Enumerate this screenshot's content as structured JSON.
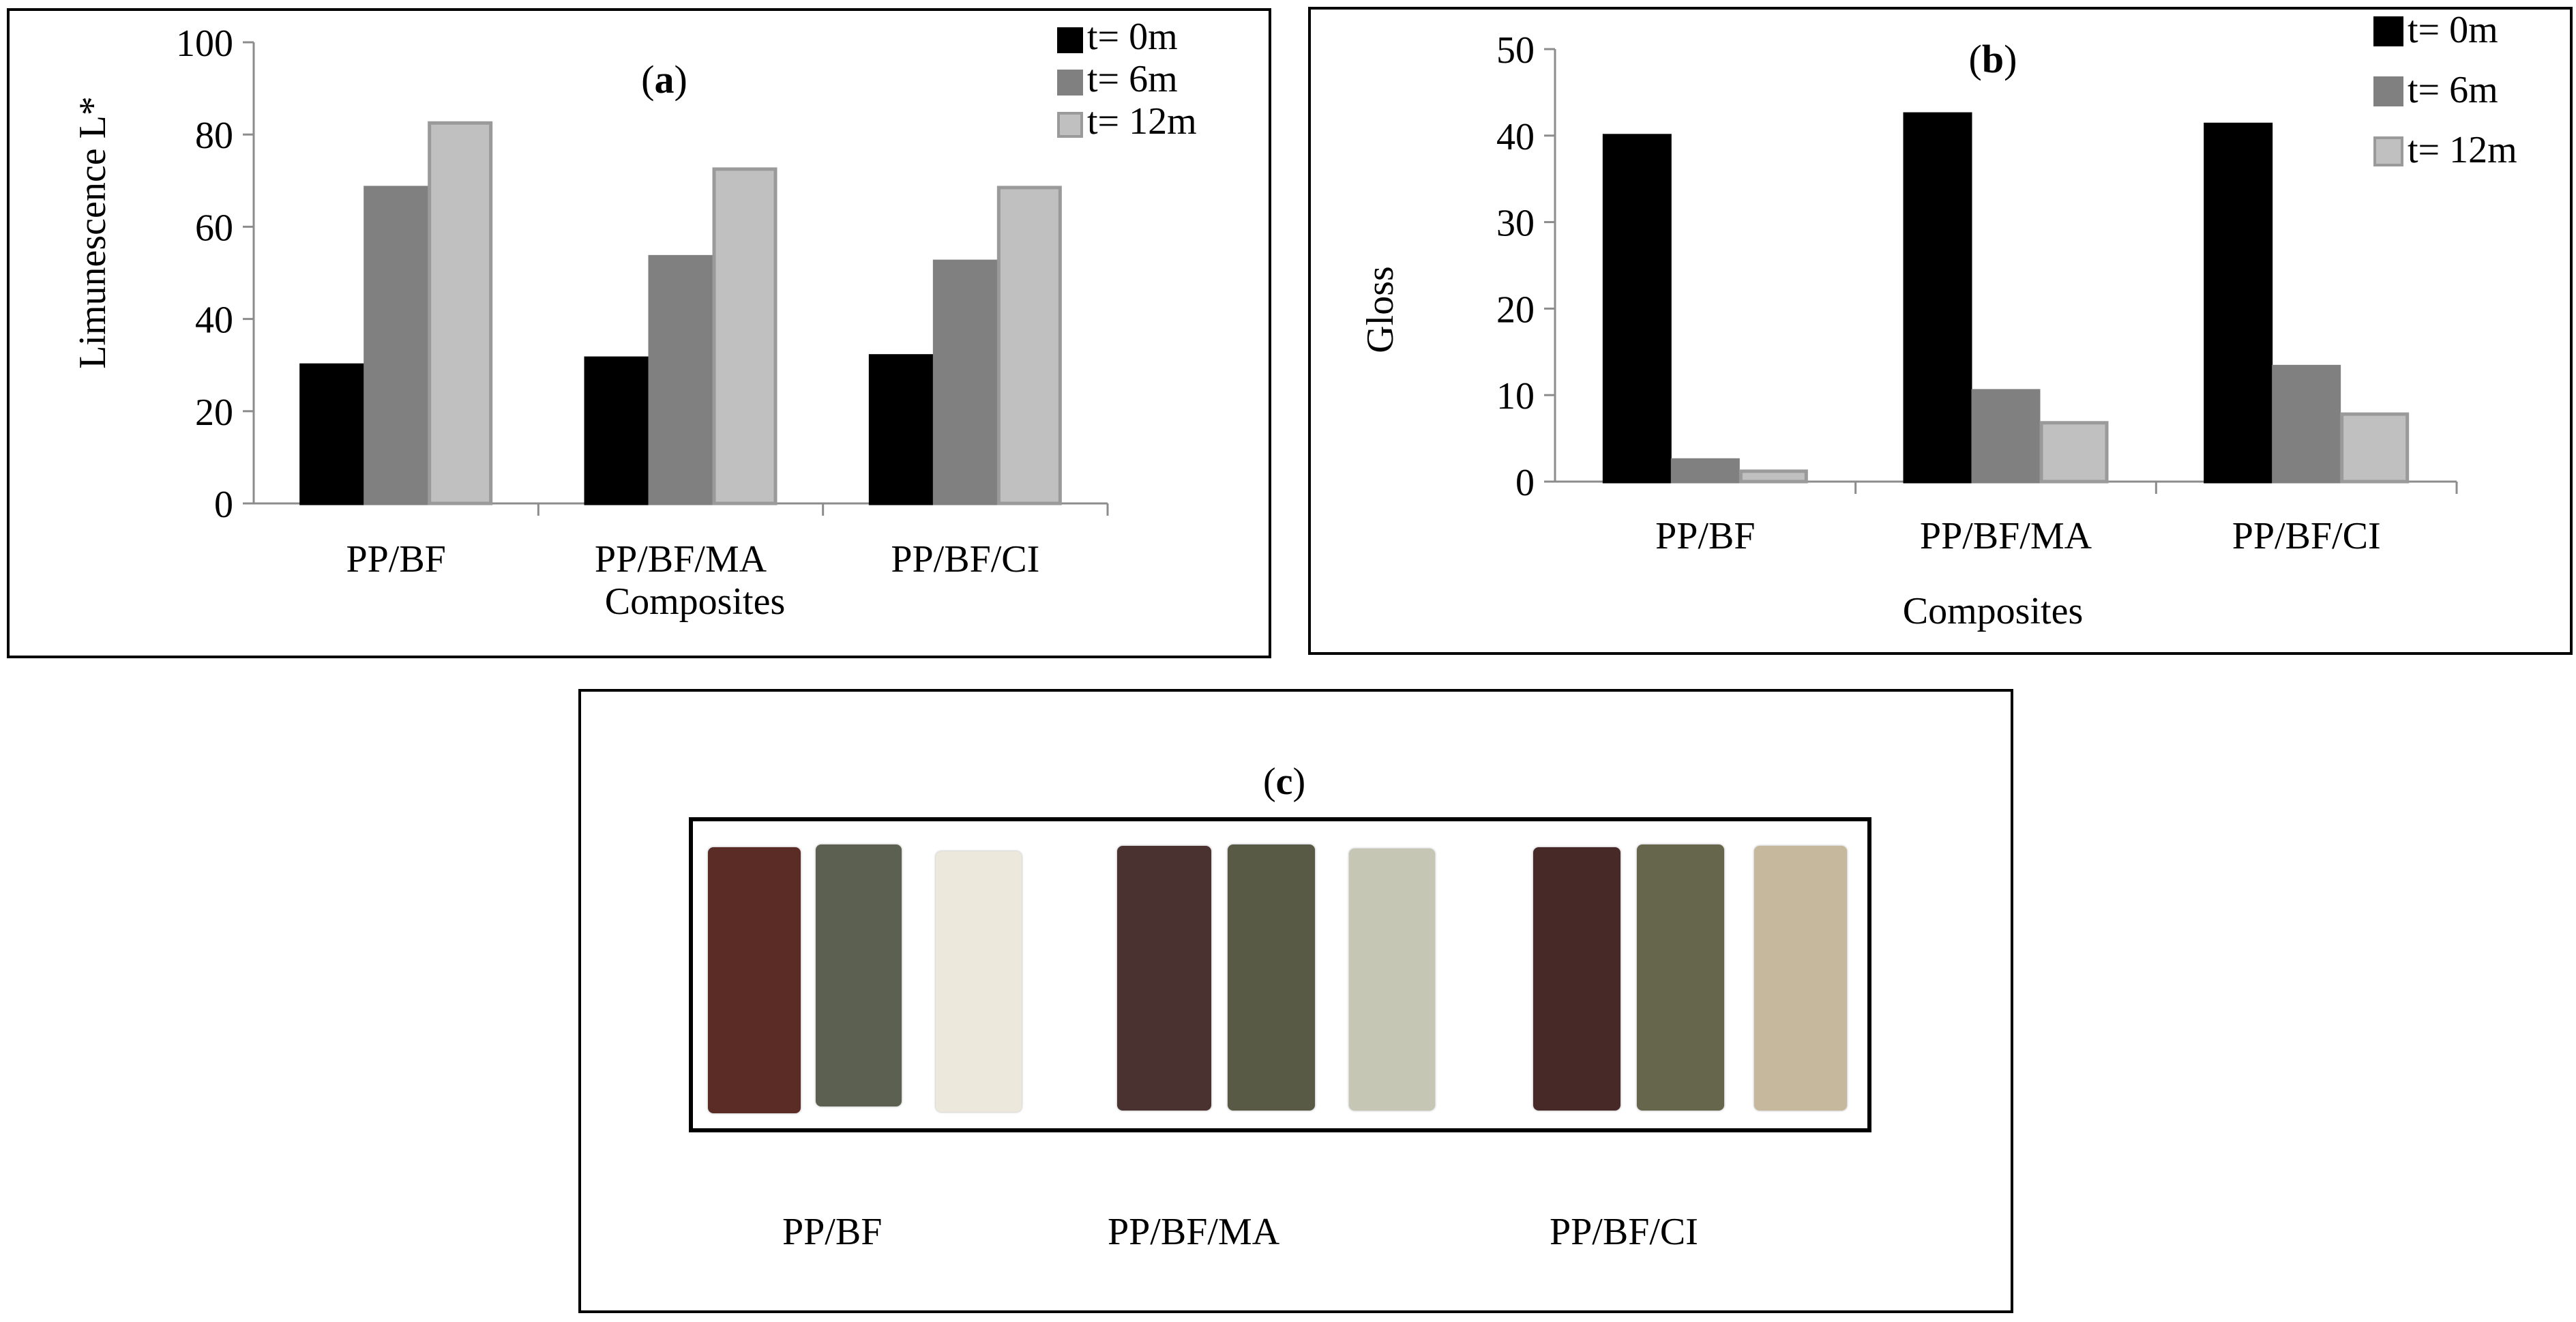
{
  "chart_data": [
    {
      "panel": "(a)",
      "panel_letter": "a",
      "type": "bar",
      "categories": [
        "PP/BF",
        "PP/BF/MA",
        "PP/BF/CI"
      ],
      "series": [
        {
          "name": "t= 0m",
          "values": [
            30,
            31.5,
            32
          ]
        },
        {
          "name": "t= 6m",
          "values": [
            68.5,
            53.5,
            52.5
          ]
        },
        {
          "name": "t= 12m",
          "values": [
            82.5,
            72.5,
            68.5
          ]
        }
      ],
      "xlabel": "Composites",
      "ylabel": "Limunescence  L*",
      "ylim": [
        0,
        100
      ],
      "yticks": [
        0,
        20,
        40,
        60,
        80,
        100
      ],
      "legend": "top-right"
    },
    {
      "panel": "(b)",
      "panel_letter": "b",
      "type": "bar",
      "categories": [
        "PP/BF",
        "PP/BF/MA",
        "PP/BF/CI"
      ],
      "series": [
        {
          "name": "t= 0m",
          "values": [
            40,
            42.5,
            41.3
          ]
        },
        {
          "name": "t= 6m",
          "values": [
            2.5,
            10.5,
            13.3
          ]
        },
        {
          "name": "t= 12m",
          "values": [
            1.2,
            6.8,
            7.8
          ]
        }
      ],
      "xlabel": "Composites",
      "ylabel": "Gloss",
      "ylim": [
        0,
        50
      ],
      "yticks": [
        0,
        10,
        20,
        30,
        40,
        50
      ],
      "legend": "top-right"
    }
  ],
  "colors": {
    "t0": "#000000",
    "t6": "#808080",
    "t12": "#c0c0c0",
    "t12_border": "#9a9a9a"
  },
  "panel_c": {
    "title": "(c)",
    "title_letter": "c",
    "labels": [
      "PP/BF",
      "PP/BF/MA",
      "PP/BF/CI"
    ],
    "strip_colors": [
      "#5a2c25",
      "#5c6050",
      "#ece9dc",
      "#4a3230",
      "#585a46",
      "#c6c6b4",
      "#472a28",
      "#66664c",
      "#c6b89c"
    ]
  }
}
